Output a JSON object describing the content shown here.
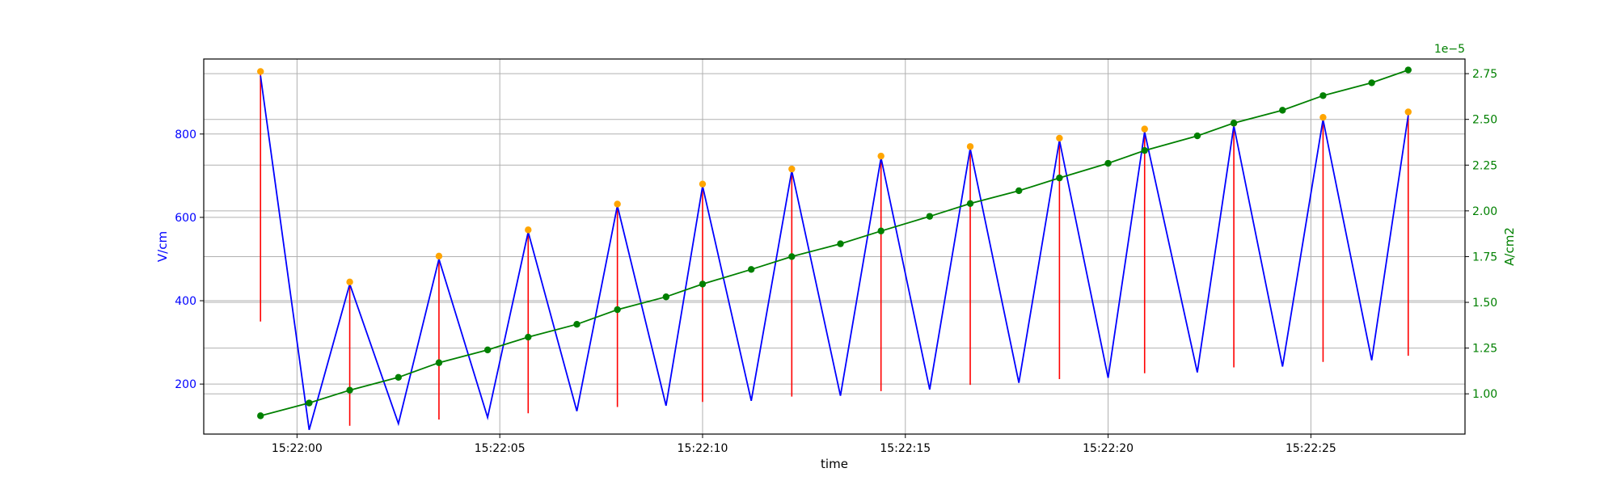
{
  "chart_data": {
    "type": "line",
    "xlabel": "time",
    "ylabel_left": "V/cm",
    "ylabel_right": "A/cm2",
    "right_axis_multiplier": "1e−5",
    "grid": true,
    "x_range_s": [
      -2.3,
      28.8
    ],
    "y_left_range": [
      80,
      980
    ],
    "y_right_range": [
      0.78,
      2.83
    ],
    "x_ticks": [
      {
        "t": 0,
        "label": "15:22:00"
      },
      {
        "t": 5,
        "label": "15:22:05"
      },
      {
        "t": 10,
        "label": "15:22:10"
      },
      {
        "t": 15,
        "label": "15:22:15"
      },
      {
        "t": 20,
        "label": "15:22:20"
      },
      {
        "t": 25,
        "label": "15:22:25"
      }
    ],
    "y_left_ticks": [
      200,
      400,
      600,
      800
    ],
    "y_right_ticks": [
      {
        "v": 1.0,
        "label": "1.00"
      },
      {
        "v": 1.25,
        "label": "1.25"
      },
      {
        "v": 1.5,
        "label": "1.50"
      },
      {
        "v": 1.75,
        "label": "1.75"
      },
      {
        "v": 2.0,
        "label": "2.00"
      },
      {
        "v": 2.25,
        "label": "2.25"
      },
      {
        "v": 2.5,
        "label": "2.50"
      },
      {
        "v": 2.75,
        "label": "2.75"
      }
    ],
    "colors": {
      "voltage_line": "#0000ff",
      "peak_marker": "#ffa500",
      "range_bar": "#ff0000",
      "current_line": "#008000",
      "grid": "#b0b0b0",
      "axis": "#000000"
    },
    "voltage_series": {
      "t": [
        -0.9,
        0.3,
        1.3,
        2.5,
        3.5,
        4.7,
        5.7,
        6.9,
        7.9,
        9.1,
        10.0,
        11.2,
        12.2,
        13.4,
        14.4,
        15.6,
        16.6,
        17.8,
        18.8,
        20.0,
        20.9,
        22.2,
        23.1,
        24.3,
        25.3,
        26.5,
        27.4
      ],
      "v": [
        940,
        90,
        440,
        105,
        500,
        120,
        565,
        135,
        628,
        148,
        675,
        160,
        712,
        172,
        743,
        187,
        765,
        203,
        785,
        215,
        805,
        228,
        820,
        242,
        835,
        257,
        845
      ]
    },
    "peaks": {
      "t": [
        -0.9,
        1.3,
        3.5,
        5.7,
        7.9,
        10.0,
        12.2,
        14.4,
        16.6,
        18.8,
        20.9,
        23.1,
        25.3,
        27.4
      ],
      "v": [
        950,
        445,
        507,
        570,
        632,
        680,
        716,
        747,
        770,
        790,
        812,
        826,
        840,
        853
      ],
      "low": [
        350,
        100,
        115,
        130,
        145,
        157,
        170,
        183,
        198,
        212,
        226,
        240,
        253,
        268
      ]
    },
    "current_series": {
      "t": [
        -0.9,
        0.3,
        1.3,
        2.5,
        3.5,
        4.7,
        5.7,
        6.9,
        7.9,
        9.1,
        10.0,
        11.2,
        12.2,
        13.4,
        14.4,
        15.6,
        16.6,
        17.8,
        18.8,
        20.0,
        20.9,
        22.2,
        23.1,
        24.3,
        25.3,
        26.5,
        27.4
      ],
      "a": [
        0.88,
        0.95,
        1.02,
        1.09,
        1.17,
        1.24,
        1.31,
        1.38,
        1.46,
        1.53,
        1.6,
        1.68,
        1.75,
        1.82,
        1.89,
        1.97,
        2.04,
        2.11,
        2.18,
        2.26,
        2.33,
        2.41,
        2.48,
        2.55,
        2.63,
        2.7,
        2.77
      ]
    }
  }
}
